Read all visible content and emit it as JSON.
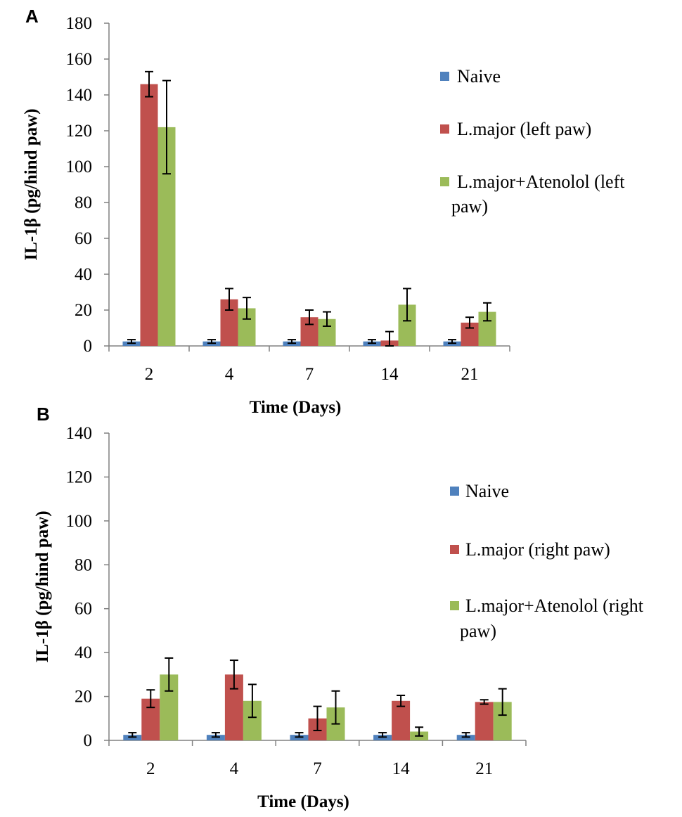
{
  "chart_data": [
    {
      "panel": "A",
      "type": "bar",
      "title": "",
      "xlabel": "Time (Days)",
      "ylabel": "IL-1β (pg/hind paw)",
      "ylim": [
        0,
        180
      ],
      "yticks": [
        0,
        20,
        40,
        60,
        80,
        100,
        120,
        140,
        160,
        180
      ],
      "grid": false,
      "legend_position": "right",
      "categories": [
        "2",
        "4",
        "7",
        "14",
        "21"
      ],
      "series": [
        {
          "name": "Naive",
          "color": "#4F81BD",
          "values": [
            2.5,
            2.5,
            2.5,
            2.5,
            2.5
          ],
          "errors": [
            1,
            1,
            1,
            1,
            1
          ]
        },
        {
          "name": "L.major (left paw)",
          "color": "#C0504D",
          "values": [
            146,
            26,
            16,
            3,
            13
          ],
          "errors": [
            7,
            6,
            4,
            5,
            3
          ]
        },
        {
          "name": "L.major+Atenolol (left paw)",
          "color": "#9BBB59",
          "values": [
            122,
            21,
            15,
            23,
            19
          ],
          "errors": [
            26,
            6,
            4,
            9,
            5
          ]
        }
      ],
      "legend_lines": [
        [
          "Naive"
        ],
        [
          "L.major (left paw)"
        ],
        [
          "L.major+Atenolol (left",
          "paw)"
        ]
      ]
    },
    {
      "panel": "B",
      "type": "bar",
      "title": "",
      "xlabel": "Time (Days)",
      "ylabel": "IL-1β (pg/hind paw)",
      "ylim": [
        0,
        140
      ],
      "yticks": [
        0,
        20,
        40,
        60,
        80,
        100,
        120,
        140
      ],
      "grid": false,
      "legend_position": "right",
      "categories": [
        "2",
        "4",
        "7",
        "14",
        "21"
      ],
      "series": [
        {
          "name": "Naive",
          "color": "#4F81BD",
          "values": [
            2.5,
            2.5,
            2.5,
            2.5,
            2.5
          ],
          "errors": [
            1,
            1,
            1,
            1,
            1
          ]
        },
        {
          "name": "L.major (right paw)",
          "color": "#C0504D",
          "values": [
            19,
            30,
            10,
            18,
            17.5
          ],
          "errors": [
            4,
            6.5,
            5.5,
            2.5,
            1
          ]
        },
        {
          "name": "L.major+Atenolol (right paw)",
          "color": "#9BBB59",
          "values": [
            30,
            18,
            15,
            4,
            17.5
          ],
          "errors": [
            7.5,
            7.5,
            7.5,
            2,
            6
          ]
        }
      ],
      "legend_lines": [
        [
          "Naive"
        ],
        [
          "L.major (right paw)"
        ],
        [
          "L.major+Atenolol (right",
          "paw)"
        ]
      ]
    }
  ]
}
